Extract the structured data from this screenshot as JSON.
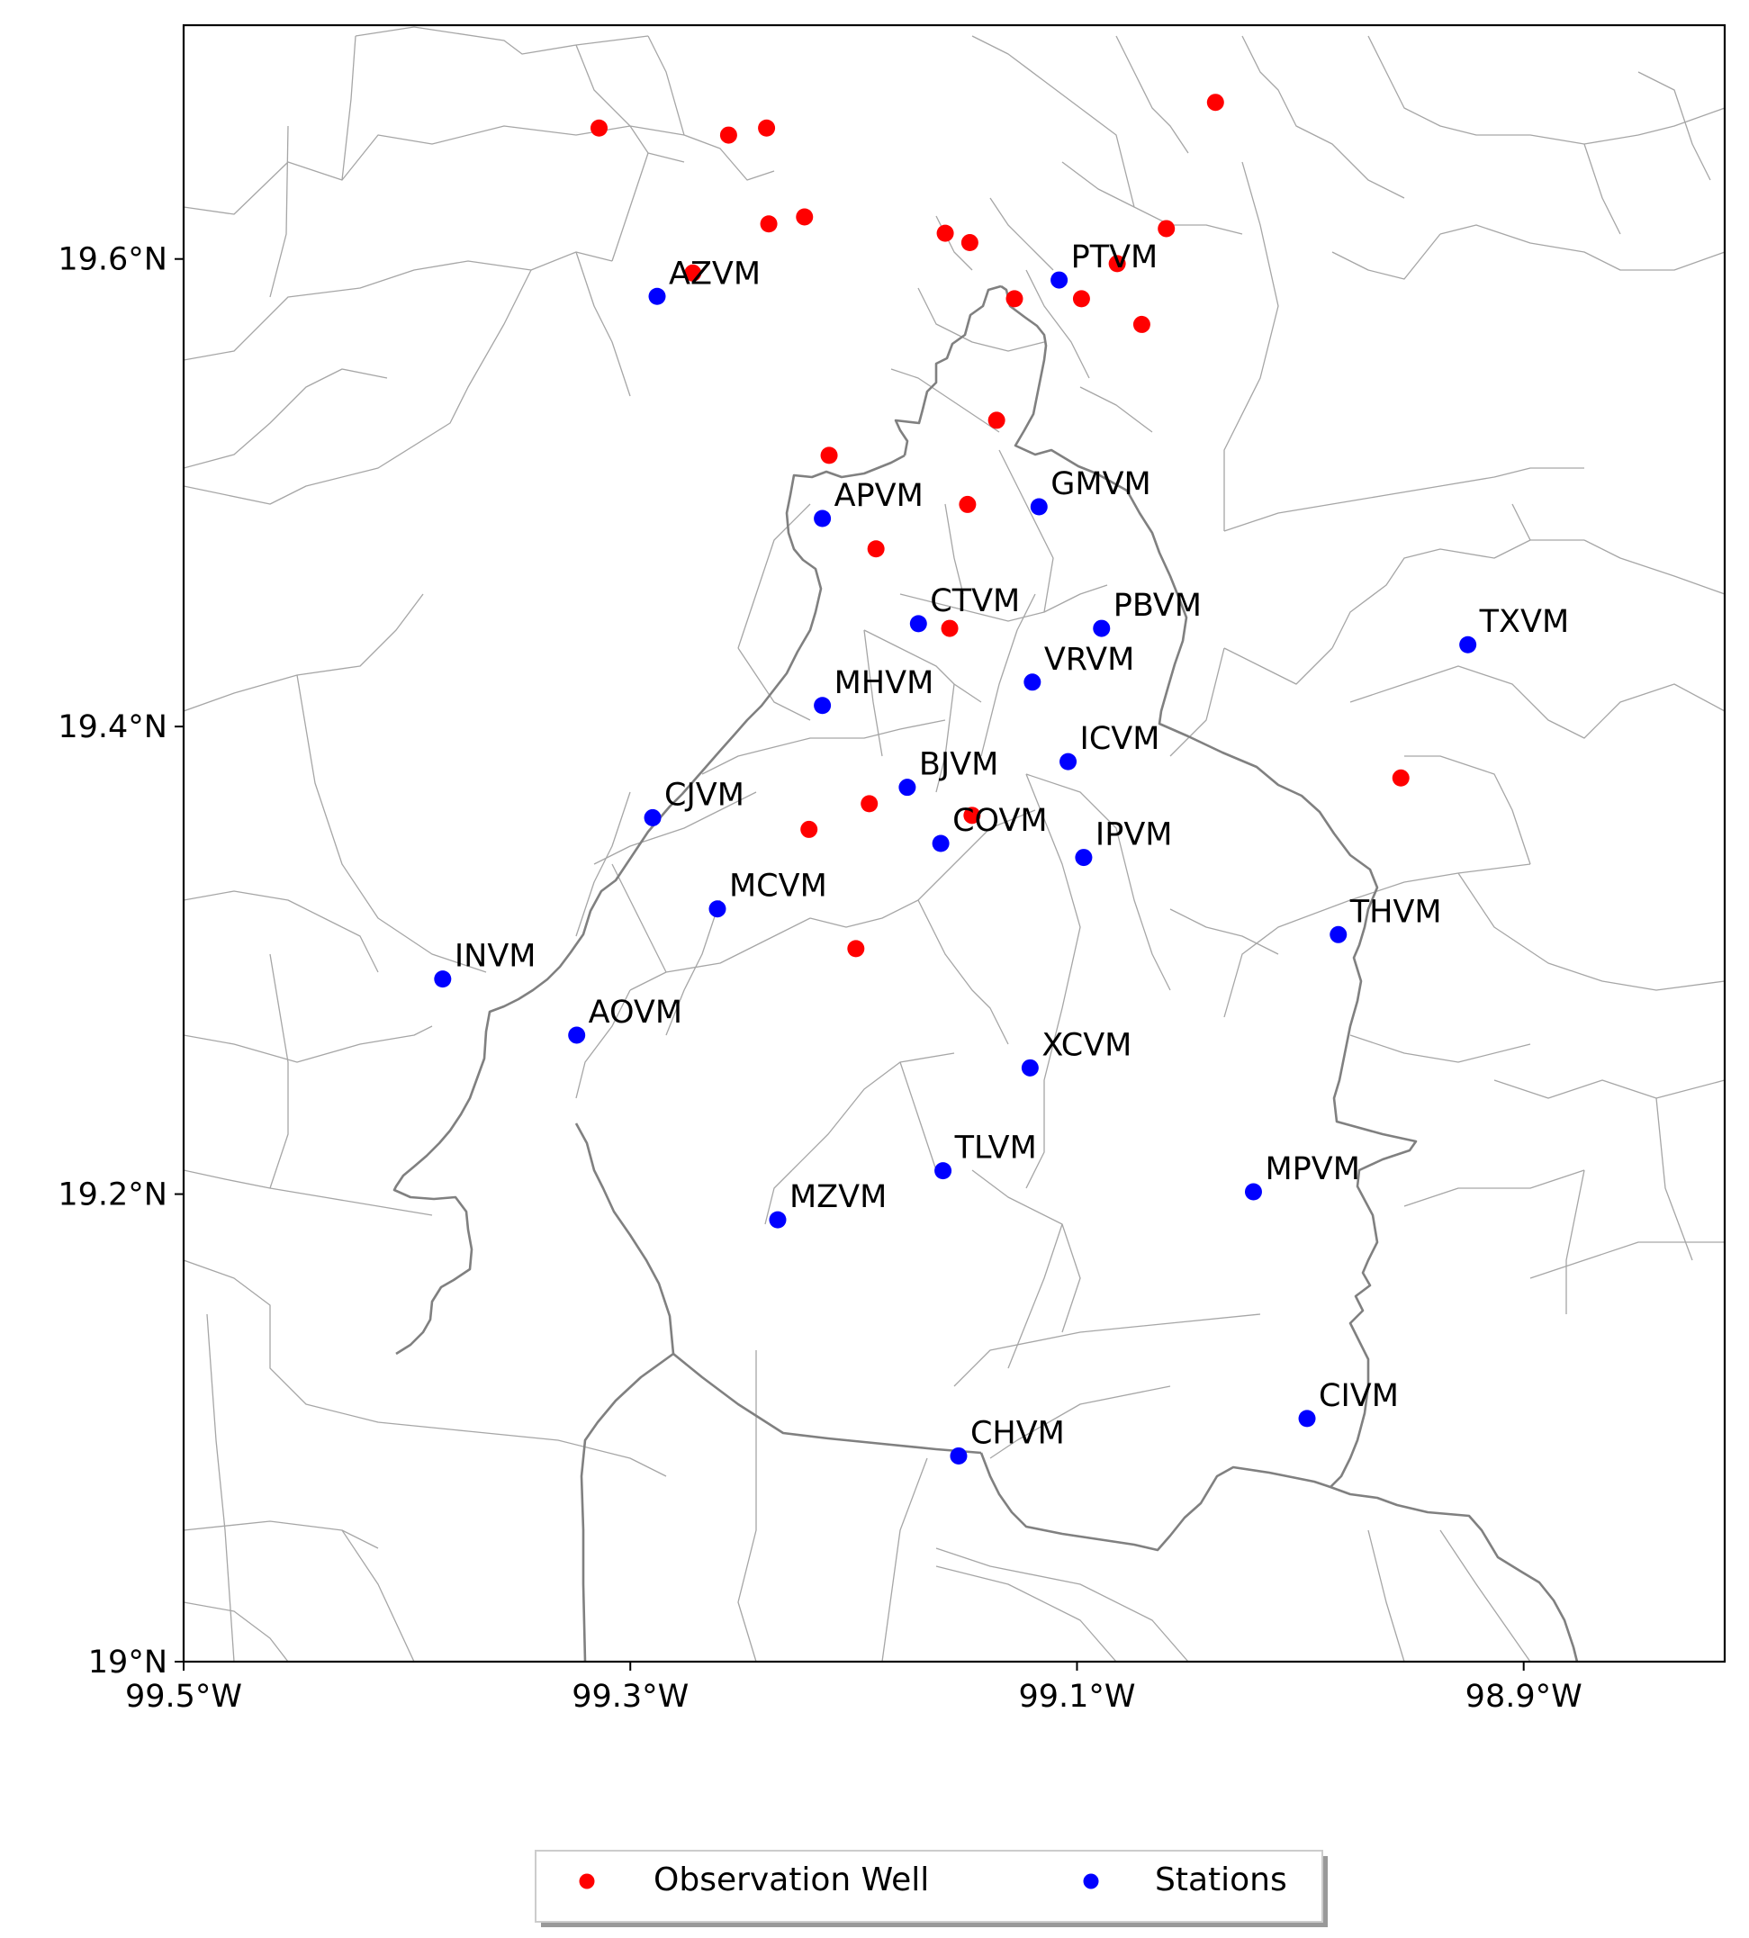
{
  "map": {
    "type": "scatter",
    "axes": {
      "x_ticks": [
        {
          "value": -99.5,
          "label": "99.5°W"
        },
        {
          "value": -99.3,
          "label": "99.3°W"
        },
        {
          "value": -99.1,
          "label": "99.1°W"
        },
        {
          "value": -98.9,
          "label": "98.9°W"
        }
      ],
      "y_ticks": [
        {
          "value": 19.0,
          "label": "19°N"
        },
        {
          "value": 19.2,
          "label": "19.2°N"
        },
        {
          "value": 19.4,
          "label": "19.4°N"
        },
        {
          "value": 19.6,
          "label": "19.6°N"
        }
      ],
      "xlim": [
        -99.5,
        -98.81
      ],
      "ylim": [
        19.0,
        19.7
      ]
    },
    "colors": {
      "observation_well": "#ff0000",
      "stations": "#0000ff",
      "district_boundary": "#808080",
      "municipal_boundaries": "#a6a6a6"
    },
    "legend": {
      "placement": "bottom-center, below plot",
      "entries": [
        {
          "label": "Observation Well",
          "series": "wells"
        },
        {
          "label": "Stations",
          "series": "stations"
        }
      ]
    }
  },
  "chart_data": {
    "type": "scatter",
    "title": "",
    "xlabel": "",
    "ylabel": "",
    "xlim": [
      -99.5,
      -98.81
    ],
    "ylim": [
      19.0,
      19.7
    ],
    "grid": false,
    "series": [
      {
        "name": "Observation Well",
        "points": [
          {
            "lon": -99.314,
            "lat": 19.656
          },
          {
            "lon": -99.256,
            "lat": 19.653
          },
          {
            "lon": -99.239,
            "lat": 19.656
          },
          {
            "lon": -99.038,
            "lat": 19.667
          },
          {
            "lon": -99.238,
            "lat": 19.615
          },
          {
            "lon": -99.222,
            "lat": 19.618
          },
          {
            "lon": -99.159,
            "lat": 19.611
          },
          {
            "lon": -99.148,
            "lat": 19.607
          },
          {
            "lon": -99.06,
            "lat": 19.613
          },
          {
            "lon": -99.272,
            "lat": 19.594
          },
          {
            "lon": -99.082,
            "lat": 19.598
          },
          {
            "lon": -99.128,
            "lat": 19.583
          },
          {
            "lon": -99.098,
            "lat": 19.583
          },
          {
            "lon": -99.071,
            "lat": 19.572
          },
          {
            "lon": -99.136,
            "lat": 19.531
          },
          {
            "lon": -99.211,
            "lat": 19.516
          },
          {
            "lon": -99.149,
            "lat": 19.495
          },
          {
            "lon": -99.19,
            "lat": 19.476
          },
          {
            "lon": -99.157,
            "lat": 19.442
          },
          {
            "lon": -98.955,
            "lat": 19.378
          },
          {
            "lon": -99.193,
            "lat": 19.367
          },
          {
            "lon": -99.147,
            "lat": 19.362
          },
          {
            "lon": -99.22,
            "lat": 19.356
          },
          {
            "lon": -99.199,
            "lat": 19.305
          }
        ]
      },
      {
        "name": "Stations",
        "points": [
          {
            "label": "AZVM",
            "lon": -99.288,
            "lat": 19.584
          },
          {
            "label": "PTVM",
            "lon": -99.108,
            "lat": 19.591
          },
          {
            "label": "APVM",
            "lon": -99.214,
            "lat": 19.489
          },
          {
            "label": "GMVM",
            "lon": -99.117,
            "lat": 19.494
          },
          {
            "label": "CTVM",
            "lon": -99.171,
            "lat": 19.444
          },
          {
            "label": "PBVM",
            "lon": -99.089,
            "lat": 19.442
          },
          {
            "label": "TXVM",
            "lon": -98.925,
            "lat": 19.435
          },
          {
            "label": "VRVM",
            "lon": -99.12,
            "lat": 19.419
          },
          {
            "label": "MHVM",
            "lon": -99.214,
            "lat": 19.409
          },
          {
            "label": "ICVM",
            "lon": -99.104,
            "lat": 19.385
          },
          {
            "label": "BJVM",
            "lon": -99.176,
            "lat": 19.374
          },
          {
            "label": "CJVM",
            "lon": -99.29,
            "lat": 19.361
          },
          {
            "label": "COVM",
            "lon": -99.161,
            "lat": 19.35
          },
          {
            "label": "IPVM",
            "lon": -99.097,
            "lat": 19.344
          },
          {
            "label": "MCVM",
            "lon": -99.261,
            "lat": 19.322
          },
          {
            "label": "THVM",
            "lon": -98.983,
            "lat": 19.311
          },
          {
            "label": "INVM",
            "lon": -99.384,
            "lat": 19.292
          },
          {
            "label": "AOVM",
            "lon": -99.324,
            "lat": 19.268
          },
          {
            "label": "XCVM",
            "lon": -99.121,
            "lat": 19.254
          },
          {
            "label": "TLVM",
            "lon": -99.16,
            "lat": 19.21
          },
          {
            "label": "MPVM",
            "lon": -99.021,
            "lat": 19.201
          },
          {
            "label": "MZVM",
            "lon": -99.234,
            "lat": 19.189
          },
          {
            "label": "CIVM",
            "lon": -98.997,
            "lat": 19.104
          },
          {
            "label": "CHVM",
            "lon": -99.153,
            "lat": 19.088
          }
        ]
      }
    ]
  }
}
